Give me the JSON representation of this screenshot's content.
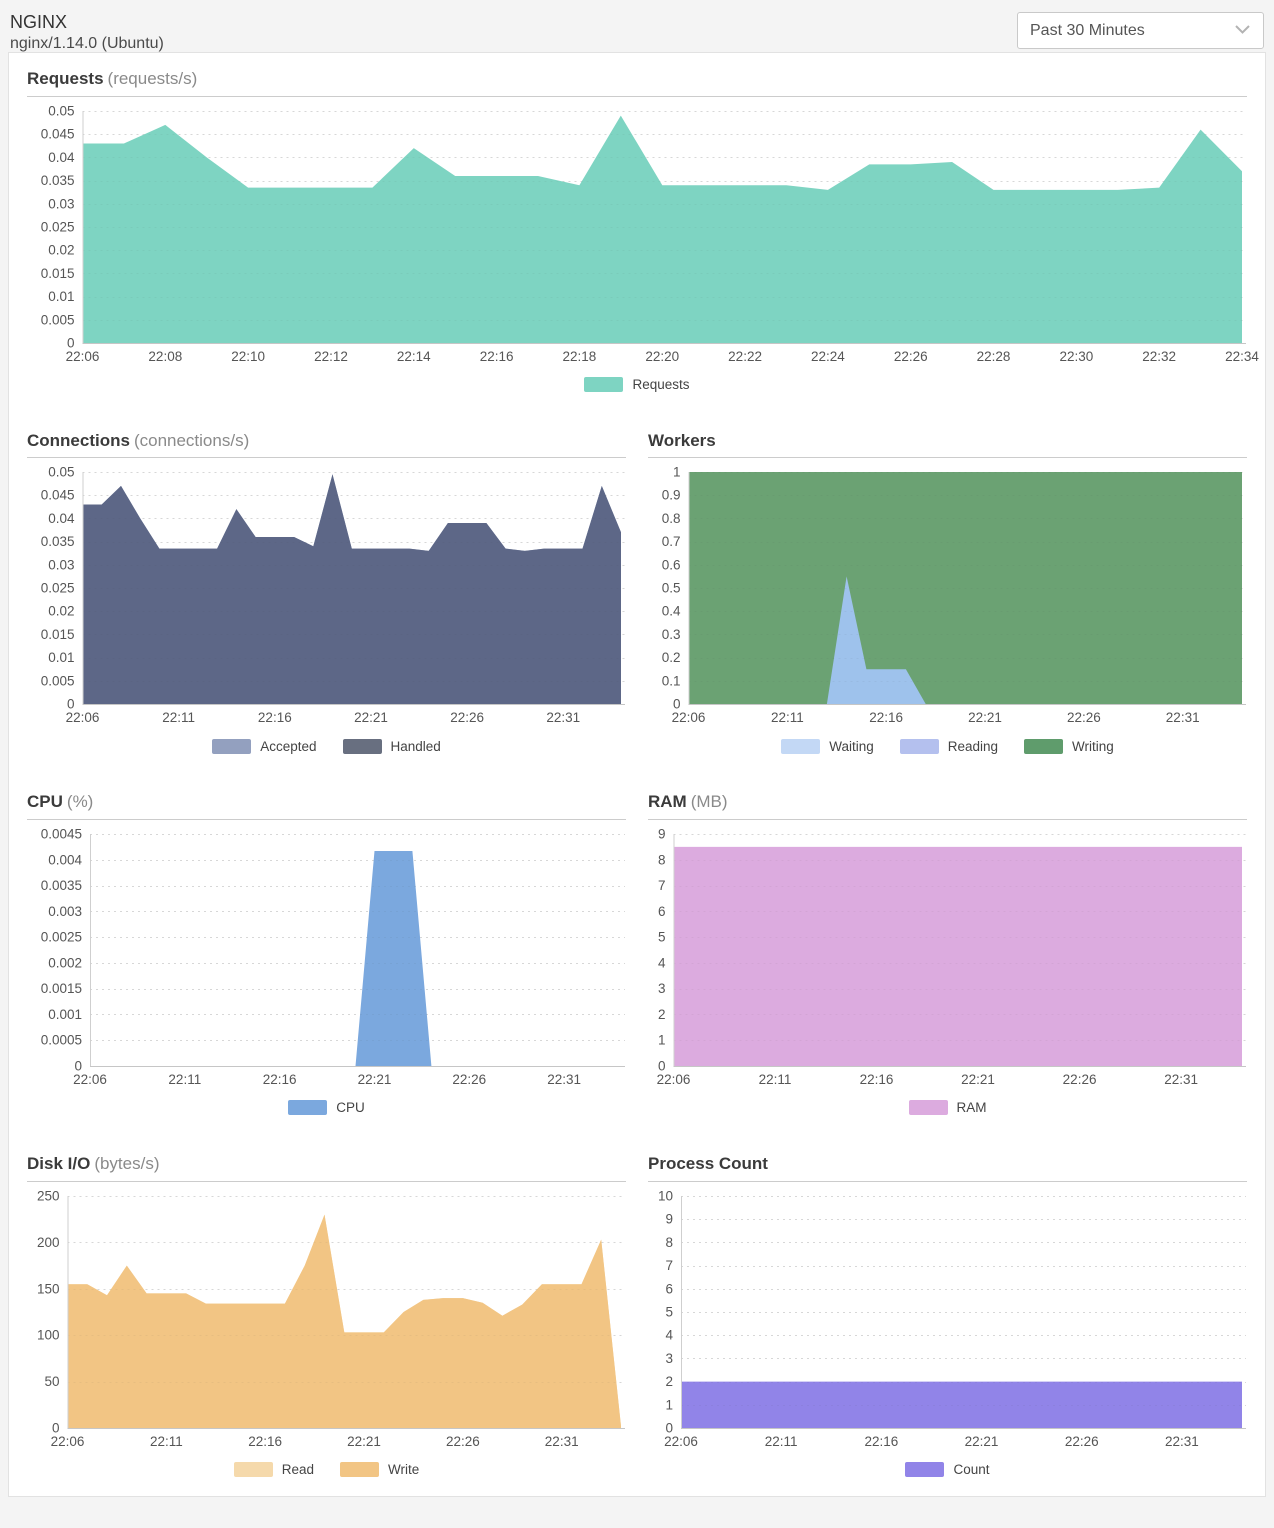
{
  "header": {
    "title": "NGINX",
    "subtitle": "nginx/1.14.0 (Ubuntu)",
    "time_range": {
      "selected": "Past 30 Minutes",
      "chevron_icon": "chevron-down"
    }
  },
  "times": [
    "22:06",
    "22:07",
    "22:08",
    "22:09",
    "22:10",
    "22:11",
    "22:12",
    "22:13",
    "22:14",
    "22:15",
    "22:16",
    "22:17",
    "22:18",
    "22:19",
    "22:20",
    "22:21",
    "22:22",
    "22:23",
    "22:24",
    "22:25",
    "22:26",
    "22:27",
    "22:28",
    "22:29",
    "22:30",
    "22:31",
    "22:32",
    "22:33",
    "22:34"
  ],
  "chart_data": [
    {
      "type": "area",
      "title": "Requests",
      "unit_display": "(requests/s)",
      "ylabel": "requests/s",
      "ylim": [
        0,
        0.05
      ],
      "ystep": 0.005,
      "grid": "dotted",
      "legend_position": "bottom",
      "width": "full",
      "x_tick_labels": [
        "22:06",
        "22:08",
        "22:10",
        "22:12",
        "22:14",
        "22:16",
        "22:18",
        "22:20",
        "22:22",
        "22:24",
        "22:26",
        "22:28",
        "22:30",
        "22:32",
        "22:34"
      ],
      "series": [
        {
          "name": "Requests",
          "color": "#7ed4c2",
          "values": [
            0.043,
            0.043,
            0.047,
            0.04,
            0.0335,
            0.0335,
            0.0335,
            0.0335,
            0.042,
            0.036,
            0.036,
            0.036,
            0.034,
            0.049,
            0.034,
            0.034,
            0.034,
            0.034,
            0.033,
            0.0385,
            0.0385,
            0.039,
            0.033,
            0.033,
            0.033,
            0.033,
            0.0335,
            0.046,
            0.037
          ]
        }
      ],
      "legend": [
        {
          "label": "Requests",
          "color": "#7ed4c2"
        }
      ]
    },
    {
      "type": "area",
      "title": "Connections",
      "unit_display": "(connections/s)",
      "ylabel": "connections/s",
      "ylim": [
        0,
        0.05
      ],
      "ystep": 0.005,
      "grid": "dotted",
      "legend_position": "bottom",
      "width": "half",
      "x_tick_labels": [
        "22:06",
        "22:11",
        "22:16",
        "22:21",
        "22:26",
        "22:31"
      ],
      "series": [
        {
          "name": "Accepted",
          "color": "#93a0bf",
          "values": [
            0.043,
            0.043,
            0.047,
            0.04,
            0.0335,
            0.0335,
            0.0335,
            0.0335,
            0.042,
            0.036,
            0.036,
            0.036,
            0.034,
            0.0495,
            0.0335,
            0.0335,
            0.0335,
            0.0335,
            0.033,
            0.039,
            0.039,
            0.039,
            0.0335,
            0.033,
            0.0335,
            0.0335,
            0.0335,
            0.047,
            0.037
          ]
        },
        {
          "name": "Handled",
          "color": "#5d6787",
          "values": [
            0.043,
            0.043,
            0.047,
            0.04,
            0.0335,
            0.0335,
            0.0335,
            0.0335,
            0.042,
            0.036,
            0.036,
            0.036,
            0.034,
            0.0495,
            0.0335,
            0.0335,
            0.0335,
            0.0335,
            0.033,
            0.039,
            0.039,
            0.039,
            0.0335,
            0.033,
            0.0335,
            0.0335,
            0.0335,
            0.047,
            0.037
          ]
        }
      ],
      "legend": [
        {
          "label": "Accepted",
          "color": "#93a0bf"
        },
        {
          "label": "Handled",
          "color": "#686f80"
        }
      ]
    },
    {
      "type": "area",
      "title": "Workers",
      "unit_display": "",
      "ylabel": "workers",
      "ylim": [
        0,
        1
      ],
      "ystep": 0.1,
      "grid": "dotted",
      "legend_position": "bottom",
      "width": "half",
      "x_tick_labels": [
        "22:06",
        "22:11",
        "22:16",
        "22:21",
        "22:26",
        "22:31"
      ],
      "series": [
        {
          "name": "Writing",
          "color": "#6ba273",
          "values": [
            1,
            1,
            1,
            1,
            1,
            1,
            1,
            1,
            1,
            1,
            1,
            1,
            1,
            1,
            1,
            1,
            1,
            1,
            1,
            1,
            1,
            1,
            1,
            1,
            1,
            1,
            1,
            1,
            1
          ]
        },
        {
          "name": "Waiting",
          "color": "#9ec2ec",
          "values": [
            0,
            0,
            0,
            0,
            0,
            0,
            0,
            0,
            0.55,
            0.15,
            0.15,
            0.15,
            0,
            0,
            0,
            0,
            0,
            0,
            0,
            0,
            0,
            0,
            0,
            0,
            0,
            0,
            0,
            0,
            0
          ]
        },
        {
          "name": "Reading",
          "color": "#b4c0ee",
          "values": [
            0,
            0,
            0,
            0,
            0,
            0,
            0,
            0,
            0,
            0,
            0,
            0,
            0,
            0,
            0,
            0,
            0,
            0,
            0,
            0,
            0,
            0,
            0,
            0,
            0,
            0,
            0,
            0,
            0
          ]
        }
      ],
      "legend": [
        {
          "label": "Waiting",
          "color": "#c3d8f5"
        },
        {
          "label": "Reading",
          "color": "#b4c0ee"
        },
        {
          "label": "Writing",
          "color": "#5f9c6c"
        }
      ]
    },
    {
      "type": "area",
      "title": "CPU",
      "unit_display": "(%)",
      "ylabel": "%",
      "ylim": [
        0,
        0.0045
      ],
      "ystep": 0.0005,
      "grid": "dotted",
      "legend_position": "bottom",
      "width": "half",
      "x_tick_labels": [
        "22:06",
        "22:11",
        "22:16",
        "22:21",
        "22:26",
        "22:31"
      ],
      "series": [
        {
          "name": "CPU",
          "color": "#7ba8de",
          "values": [
            0,
            0,
            0,
            0,
            0,
            0,
            0,
            0,
            0,
            0,
            0,
            0,
            0,
            0,
            0,
            0.00417,
            0.00417,
            0.00417,
            0,
            0,
            0,
            0,
            0,
            0,
            0,
            0,
            0,
            0,
            0
          ]
        }
      ],
      "legend": [
        {
          "label": "CPU",
          "color": "#7ba8de"
        }
      ]
    },
    {
      "type": "area",
      "title": "RAM",
      "unit_display": "(MB)",
      "ylabel": "MB",
      "ylim": [
        0,
        9
      ],
      "ystep": 1,
      "grid": "dotted",
      "legend_position": "bottom",
      "width": "half",
      "x_tick_labels": [
        "22:06",
        "22:11",
        "22:16",
        "22:21",
        "22:26",
        "22:31"
      ],
      "series": [
        {
          "name": "RAM",
          "color": "#dcabdf",
          "values": [
            8.5,
            8.5,
            8.5,
            8.5,
            8.5,
            8.5,
            8.5,
            8.5,
            8.5,
            8.5,
            8.5,
            8.5,
            8.5,
            8.5,
            8.5,
            8.5,
            8.5,
            8.5,
            8.5,
            8.5,
            8.5,
            8.5,
            8.5,
            8.5,
            8.5,
            8.5,
            8.5,
            8.5,
            8.5
          ]
        }
      ],
      "legend": [
        {
          "label": "RAM",
          "color": "#dcabdf"
        }
      ]
    },
    {
      "type": "area",
      "title": "Disk I/O",
      "unit_display": "(bytes/s)",
      "ylabel": "bytes/s",
      "ylim": [
        0,
        250
      ],
      "ystep": 50,
      "grid": "dotted",
      "legend_position": "bottom",
      "width": "half",
      "x_tick_labels": [
        "22:06",
        "22:11",
        "22:16",
        "22:21",
        "22:26",
        "22:31"
      ],
      "series": [
        {
          "name": "Read",
          "color": "#f5d9ab",
          "values": [
            155,
            155,
            143,
            175,
            145,
            145,
            145,
            134,
            134,
            134,
            134,
            134,
            175,
            230,
            103,
            103,
            103,
            125,
            138,
            140,
            140,
            135,
            121,
            133,
            155,
            155,
            155,
            203,
            2
          ]
        },
        {
          "name": "Write",
          "color": "#f2c584",
          "values": [
            155,
            155,
            143,
            175,
            145,
            145,
            145,
            134,
            134,
            134,
            134,
            134,
            175,
            230,
            103,
            103,
            103,
            125,
            138,
            140,
            140,
            135,
            121,
            133,
            155,
            155,
            155,
            203,
            2
          ]
        }
      ],
      "legend": [
        {
          "label": "Read",
          "color": "#f5d9ab"
        },
        {
          "label": "Write",
          "color": "#f2c584"
        }
      ]
    },
    {
      "type": "area",
      "title": "Process Count",
      "unit_display": "",
      "ylabel": "count",
      "ylim": [
        0,
        10
      ],
      "ystep": 1,
      "grid": "dotted",
      "legend_position": "bottom",
      "width": "half",
      "x_tick_labels": [
        "22:06",
        "22:11",
        "22:16",
        "22:21",
        "22:26",
        "22:31"
      ],
      "series": [
        {
          "name": "Count",
          "color": "#9184e8",
          "values": [
            2,
            2,
            2,
            2,
            2,
            2,
            2,
            2,
            2,
            2,
            2,
            2,
            2,
            2,
            2,
            2,
            2,
            2,
            2,
            2,
            2,
            2,
            2,
            2,
            2,
            2,
            2,
            2,
            2
          ]
        }
      ],
      "legend": [
        {
          "label": "Count",
          "color": "#9184e8"
        }
      ]
    }
  ]
}
